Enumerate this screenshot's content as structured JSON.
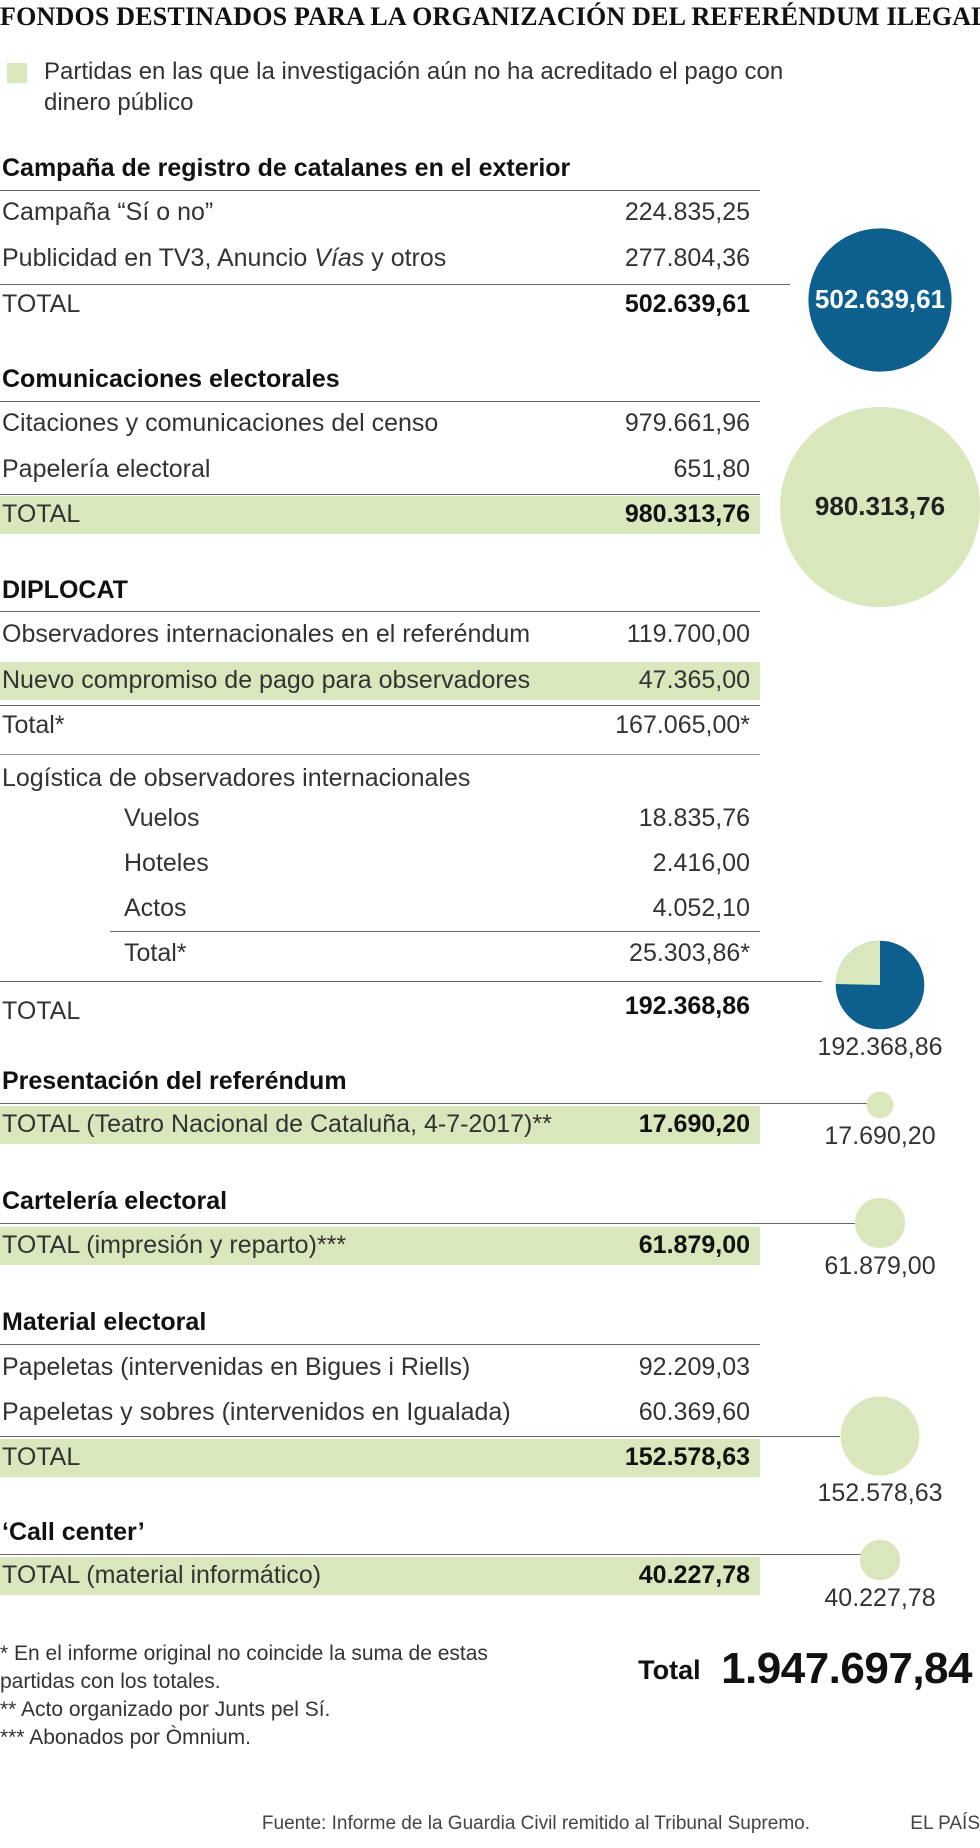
{
  "header": {
    "title": "FONDOS DESTINADOS PARA LA ORGANIZACIÓN DEL REFERÉNDUM ILEGAL",
    "legend": "Partidas en las que la investigación aún no ha acreditado el pago con dinero público"
  },
  "colors": {
    "highlight": "#d9e7bd",
    "bubble_blue": "#0d5f8d",
    "bubble_green": "#d9e7bd",
    "rule": "#666666"
  },
  "sections": {
    "registro": {
      "title": "Campaña de registro de catalanes en el exterior",
      "rows": [
        {
          "label": "Campaña “Sí o no”",
          "value": "224.835,25"
        },
        {
          "label_pre": "Publicidad en TV3, Anuncio ",
          "label_em": "Vías",
          "label_post": " y otros",
          "value": "277.804,36"
        }
      ],
      "total_label": "TOTAL",
      "total_value": "502.639,61"
    },
    "comunicaciones": {
      "title": "Comunicaciones electorales",
      "rows": [
        {
          "label": "Citaciones y comunicaciones del censo",
          "value": "979.661,96"
        },
        {
          "label": "Papelería electoral",
          "value": "651,80"
        }
      ],
      "total_label": "TOTAL",
      "total_value": "980.313,76"
    },
    "diplocat": {
      "title": "DIPLOCAT",
      "rows": [
        {
          "label": "Observadores internacionales en el referéndum",
          "value": "119.700,00"
        },
        {
          "label": "Nuevo compromiso de pago para observadores",
          "value": "47.365,00"
        }
      ],
      "subtotal_label": "Total*",
      "subtotal_value": "167.065,00*",
      "logistica_title": "Logística de observadores internacionales",
      "logistica_rows": [
        {
          "label": "Vuelos",
          "value": "18.835,76"
        },
        {
          "label": "Hoteles",
          "value": "2.416,00"
        },
        {
          "label": "Actos",
          "value": "4.052,10"
        }
      ],
      "logistica_total_label": "Total*",
      "logistica_total_value": "25.303,86*",
      "total_label": "TOTAL",
      "total_value": "192.368,86"
    },
    "presentacion": {
      "title": "Presentación del referéndum",
      "total_label": "TOTAL (Teatro Nacional de Cataluña, 4-7-2017)**",
      "total_value": "17.690,20"
    },
    "carteleria": {
      "title": "Cartelería electoral",
      "total_label": "TOTAL (impresión y reparto)***",
      "total_value": "61.879,00"
    },
    "material": {
      "title": "Material electoral",
      "rows": [
        {
          "label": "Papeletas (intervenidas en Bigues i Riells)",
          "value": "92.209,03"
        },
        {
          "label": "Papeletas y sobres (intervenidos en Igualada)",
          "value": "60.369,60"
        }
      ],
      "total_label": "TOTAL",
      "total_value": "152.578,63"
    },
    "callcenter": {
      "title": "‘Call center’",
      "total_label": "TOTAL (material informático)",
      "total_value": "40.227,78"
    }
  },
  "footnotes": {
    "n1": "* En el informe original no coincide la suma de estas partidas con los totales.",
    "n2": "** Acto organizado por Junts pel Sí.",
    "n3": "*** Abonados por Òmnium."
  },
  "grand_total": {
    "label": "Total",
    "value": "1.947.697,84"
  },
  "source": "Fuente: Informe de la Guardia Civil remitido al Tribunal Supremo.",
  "brand": "EL PAÍS",
  "chart_data": {
    "type": "bubble",
    "title": "FONDOS DESTINADOS PARA LA ORGANIZACIÓN DEL REFERÉNDUM ILEGAL",
    "series": [
      {
        "name": "Campaña de registro de catalanes en el exterior",
        "value": 502639.61,
        "label": "502.639,61",
        "status": "pago acreditado"
      },
      {
        "name": "Comunicaciones electorales",
        "value": 980313.76,
        "label": "980.313,76",
        "status": "no acreditado"
      },
      {
        "name": "DIPLOCAT",
        "value": 192368.86,
        "label": "192.368,86",
        "acreditado": 145003.86,
        "no_acreditado": 47365.0
      },
      {
        "name": "Presentación del referéndum",
        "value": 17690.2,
        "label": "17.690,20",
        "status": "no acreditado"
      },
      {
        "name": "Cartelería electoral",
        "value": 61879.0,
        "label": "61.879,00",
        "status": "no acreditado"
      },
      {
        "name": "Material electoral",
        "value": 152578.63,
        "label": "152.578,63",
        "status": "no acreditado"
      },
      {
        "name": "Call center",
        "value": 40227.78,
        "label": "40.227,78",
        "status": "no acreditado"
      }
    ],
    "total": 1947697.84
  }
}
